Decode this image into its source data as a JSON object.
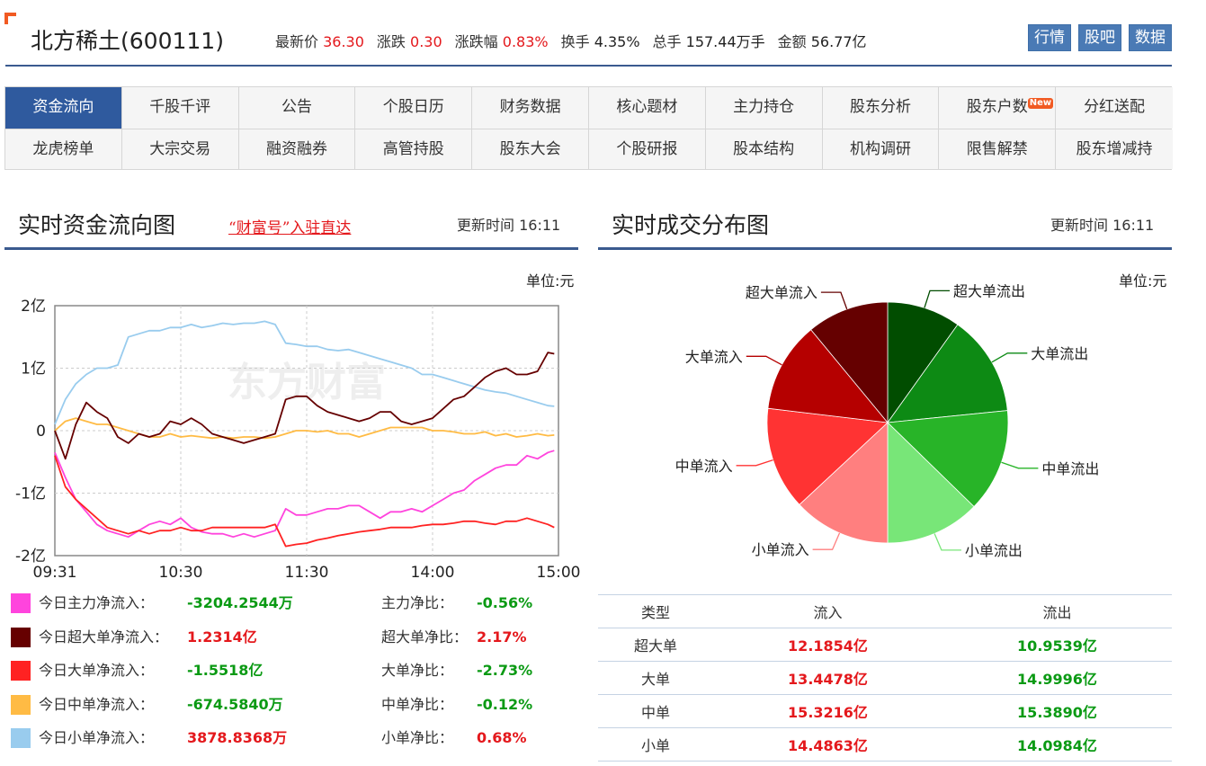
{
  "header": {
    "stock_name": "北方稀土(600111)",
    "quote": [
      {
        "label": "最新价",
        "value": "36.30",
        "tone": "red"
      },
      {
        "label": "涨跌",
        "value": "0.30",
        "tone": "red"
      },
      {
        "label": "涨跌幅",
        "value": "0.83%",
        "tone": "red"
      },
      {
        "label": "换手",
        "value": "4.35%",
        "tone": "dark"
      },
      {
        "label": "总手",
        "value": "157.44万手",
        "tone": "dark"
      },
      {
        "label": "金额",
        "value": "56.77亿",
        "tone": "dark"
      }
    ],
    "buttons": [
      "行情",
      "股吧",
      "数据"
    ]
  },
  "tabs": {
    "row1": [
      "资金流向",
      "千股千评",
      "公告",
      "个股日历",
      "财务数据",
      "核心题材",
      "主力持仓",
      "股东分析",
      "股东户数",
      "分红送配"
    ],
    "row2": [
      "龙虎榜单",
      "大宗交易",
      "融资融券",
      "高管持股",
      "股东大会",
      "个股研报",
      "股本结构",
      "机构调研",
      "限售解禁",
      "股东增减持"
    ],
    "active": "资金流向",
    "new_badge_on": "股东户数",
    "new_badge_text": "New"
  },
  "flow_panel": {
    "title": "实时资金流向图",
    "link": "“财富号”入驻直达",
    "update_label": "更新时间",
    "update_time": "16:11",
    "unit": "单位:元",
    "legend": [
      {
        "label": "今日主力净流入：",
        "value": "-3204.2544万",
        "ratio_label": "主力净比：",
        "ratio": "-0.56%",
        "color": "#ff44dd",
        "tone": "green",
        "ratio_tone": "green"
      },
      {
        "label": "今日超大单净流入：",
        "value": "1.2314亿",
        "ratio_label": "超大单净比：",
        "ratio": "2.17%",
        "color": "#660000",
        "tone": "red",
        "ratio_tone": "red"
      },
      {
        "label": "今日大单净流入：",
        "value": "-1.5518亿",
        "ratio_label": "大单净比：",
        "ratio": "-2.73%",
        "color": "#ff2222",
        "tone": "green",
        "ratio_tone": "green"
      },
      {
        "label": "今日中单净流入：",
        "value": "-674.5840万",
        "ratio_label": "中单净比：",
        "ratio": "-0.12%",
        "color": "#ffbb44",
        "tone": "green",
        "ratio_tone": "green"
      },
      {
        "label": "今日小单净流入：",
        "value": "3878.8368万",
        "ratio_label": "小单净比：",
        "ratio": "0.68%",
        "color": "#99ccee",
        "tone": "red",
        "ratio_tone": "red"
      }
    ]
  },
  "deal_panel": {
    "title": "实时成交分布图",
    "update_label": "更新时间",
    "update_time": "16:11",
    "unit": "单位:元",
    "table": {
      "headers": [
        "类型",
        "流入",
        "流出"
      ],
      "rows": [
        [
          "超大单",
          "12.1854亿",
          "10.9539亿"
        ],
        [
          "大单",
          "13.4478亿",
          "14.9996亿"
        ],
        [
          "中单",
          "15.3216亿",
          "15.3890亿"
        ],
        [
          "小单",
          "14.4863亿",
          "14.0984亿"
        ]
      ]
    }
  },
  "chart_data": [
    {
      "type": "line",
      "y_tick_labels": [
        "2亿",
        "1亿",
        "0",
        "-1亿",
        "-2亿"
      ],
      "y_ticks": [
        2,
        1,
        0,
        -1,
        -2
      ],
      "x_tick_labels": [
        "09:31",
        "10:30",
        "11:30",
        "14:00",
        "15:00"
      ],
      "x_ticks": [
        0,
        60,
        120,
        180,
        240
      ],
      "xlim": [
        0,
        240
      ],
      "ylim": [
        -2,
        2
      ],
      "y_unit": "亿",
      "watermark": "东方财富",
      "grid": true,
      "x": [
        0,
        5,
        10,
        15,
        20,
        25,
        30,
        35,
        40,
        45,
        50,
        55,
        60,
        65,
        70,
        75,
        80,
        85,
        90,
        95,
        100,
        105,
        110,
        115,
        120,
        125,
        130,
        135,
        140,
        145,
        150,
        155,
        160,
        165,
        170,
        175,
        180,
        185,
        190,
        195,
        200,
        205,
        210,
        215,
        220,
        225,
        230,
        235,
        238
      ],
      "series": [
        {
          "color": "#ff44dd",
          "values": [
            -0.35,
            -0.75,
            -1.1,
            -1.3,
            -1.5,
            -1.6,
            -1.65,
            -1.7,
            -1.6,
            -1.5,
            -1.45,
            -1.5,
            -1.4,
            -1.55,
            -1.62,
            -1.65,
            -1.65,
            -1.7,
            -1.65,
            -1.7,
            -1.65,
            -1.6,
            -1.25,
            -1.35,
            -1.35,
            -1.3,
            -1.25,
            -1.25,
            -1.2,
            -1.2,
            -1.3,
            -1.4,
            -1.3,
            -1.3,
            -1.25,
            -1.3,
            -1.2,
            -1.1,
            -1.0,
            -0.95,
            -0.8,
            -0.7,
            -0.6,
            -0.55,
            -0.55,
            -0.4,
            -0.45,
            -0.35,
            -0.32
          ]
        },
        {
          "color": "#660000",
          "values": [
            0.0,
            -0.45,
            0.1,
            0.45,
            0.3,
            0.2,
            -0.1,
            -0.2,
            -0.05,
            -0.1,
            -0.05,
            0.15,
            0.1,
            0.2,
            0.1,
            -0.05,
            -0.1,
            -0.15,
            -0.2,
            -0.15,
            -0.1,
            -0.05,
            0.5,
            0.55,
            0.55,
            0.4,
            0.3,
            0.25,
            0.2,
            0.15,
            0.2,
            0.3,
            0.3,
            0.15,
            0.1,
            0.15,
            0.2,
            0.35,
            0.5,
            0.55,
            0.7,
            0.85,
            0.95,
            1.0,
            0.9,
            0.9,
            0.95,
            1.25,
            1.23
          ]
        },
        {
          "color": "#ff2222",
          "values": [
            -0.4,
            -0.9,
            -1.1,
            -1.25,
            -1.4,
            -1.55,
            -1.6,
            -1.65,
            -1.6,
            -1.65,
            -1.6,
            -1.6,
            -1.55,
            -1.6,
            -1.6,
            -1.55,
            -1.55,
            -1.55,
            -1.55,
            -1.55,
            -1.55,
            -1.5,
            -1.85,
            -1.82,
            -1.8,
            -1.75,
            -1.72,
            -1.68,
            -1.65,
            -1.62,
            -1.6,
            -1.58,
            -1.55,
            -1.55,
            -1.55,
            -1.52,
            -1.5,
            -1.5,
            -1.48,
            -1.45,
            -1.45,
            -1.48,
            -1.5,
            -1.45,
            -1.45,
            -1.4,
            -1.45,
            -1.5,
            -1.55
          ]
        },
        {
          "color": "#ffbb44",
          "values": [
            0.0,
            0.15,
            0.2,
            0.15,
            0.1,
            0.1,
            0.05,
            0.0,
            -0.05,
            -0.1,
            -0.1,
            -0.05,
            -0.1,
            -0.08,
            -0.1,
            -0.12,
            -0.1,
            -0.12,
            -0.1,
            -0.1,
            -0.12,
            -0.1,
            -0.05,
            0.0,
            0.0,
            -0.02,
            0.0,
            -0.05,
            -0.05,
            -0.1,
            -0.05,
            0.0,
            0.05,
            0.05,
            0.05,
            0.05,
            0.0,
            0.0,
            -0.02,
            -0.05,
            -0.05,
            -0.02,
            -0.08,
            -0.05,
            -0.1,
            -0.08,
            -0.05,
            -0.08,
            -0.07
          ]
        },
        {
          "color": "#99ccee",
          "values": [
            0.1,
            0.5,
            0.75,
            0.9,
            1.0,
            1.0,
            1.05,
            1.5,
            1.55,
            1.6,
            1.6,
            1.65,
            1.65,
            1.7,
            1.65,
            1.68,
            1.72,
            1.7,
            1.72,
            1.72,
            1.75,
            1.7,
            1.4,
            1.38,
            1.35,
            1.35,
            1.3,
            1.28,
            1.3,
            1.25,
            1.2,
            1.15,
            1.1,
            1.05,
            1.0,
            0.9,
            0.9,
            0.85,
            0.8,
            0.75,
            0.7,
            0.65,
            0.62,
            0.6,
            0.55,
            0.5,
            0.45,
            0.4,
            0.39
          ]
        }
      ]
    },
    {
      "type": "pie",
      "labels": [
        "超大单流出",
        "大单流出",
        "中单流出",
        "小单流出",
        "小单流入",
        "中单流入",
        "大单流入",
        "超大单流入"
      ],
      "values": [
        10.9539,
        14.9996,
        15.389,
        14.0984,
        14.4863,
        15.3216,
        13.4478,
        12.1854
      ],
      "colors": [
        "#014d00",
        "#0d8a14",
        "#28b428",
        "#78e678",
        "#ff7f7f",
        "#ff3333",
        "#b50000",
        "#650000"
      ]
    }
  ]
}
